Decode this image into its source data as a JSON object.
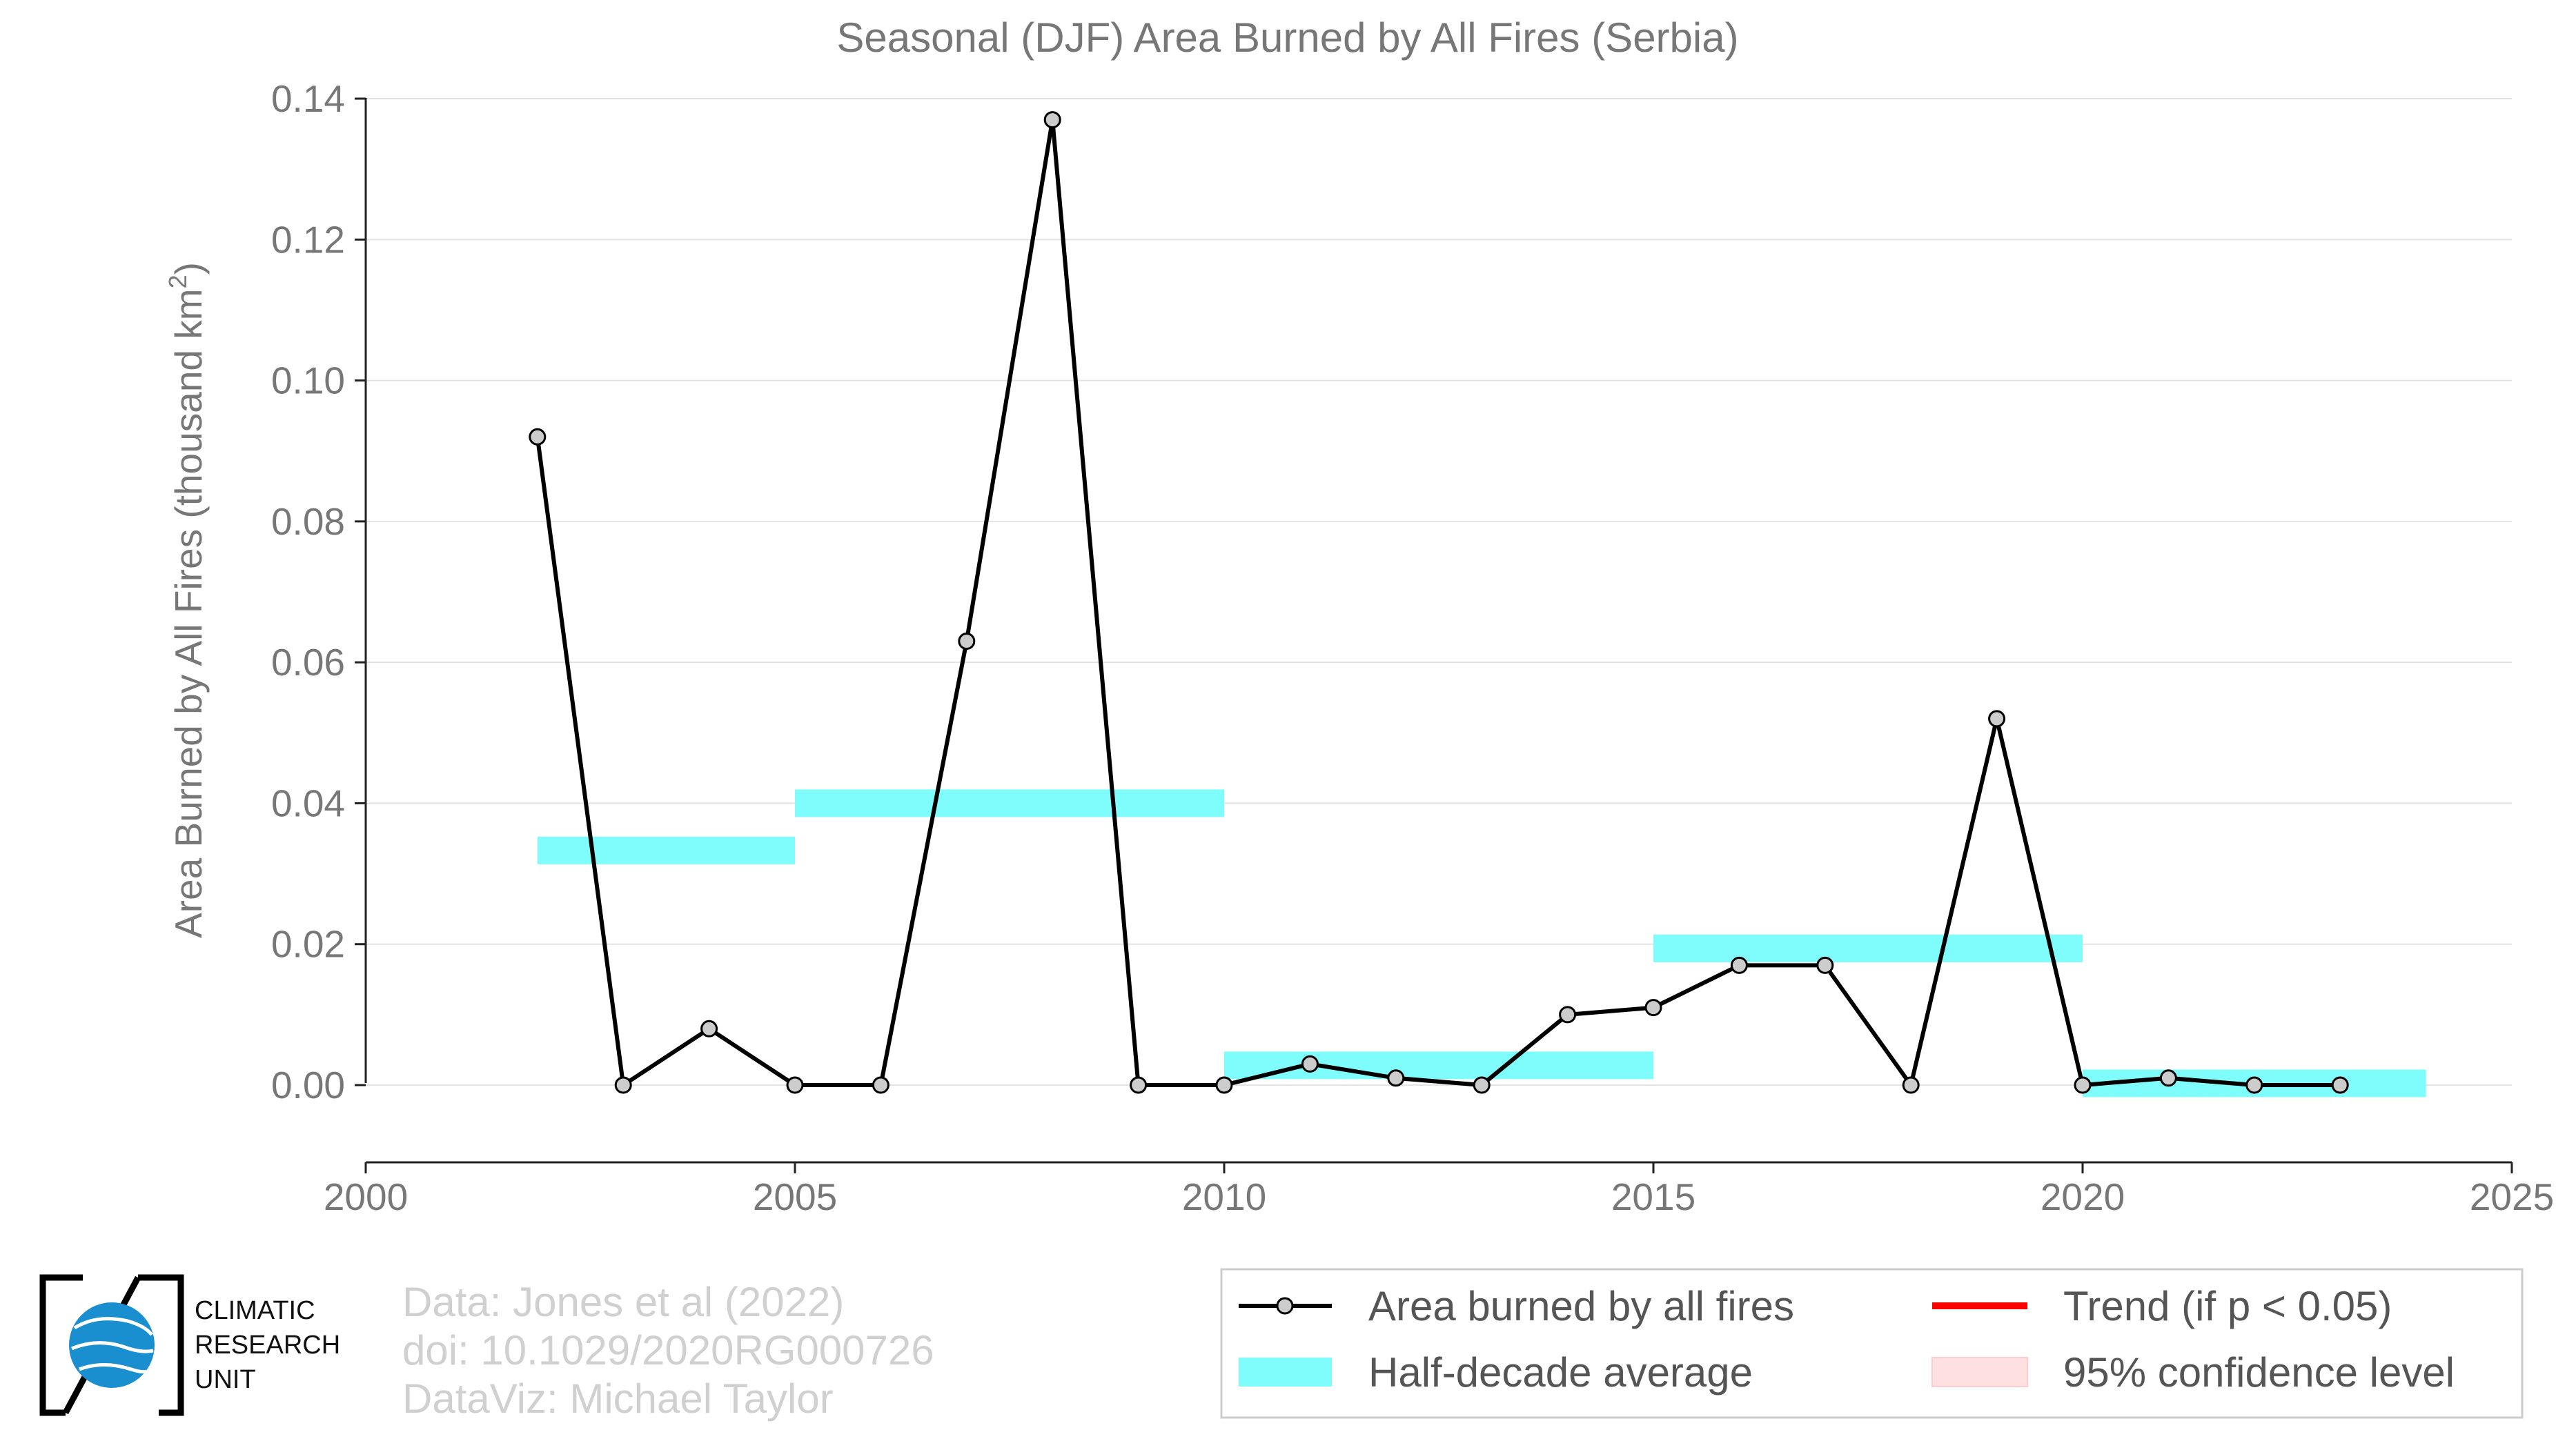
{
  "chart_data": {
    "type": "line",
    "title": "Seasonal (DJF) Area Burned by All Fires (Serbia)",
    "ylabel": "Area Burned by All Fires (thousand km",
    "ylabel_sup": "2",
    "ylabel_close": ")",
    "xlabel": "",
    "xlim": [
      2000,
      2025
    ],
    "ylim": [
      -0.011,
      0.14
    ],
    "x_ticks": [
      2000,
      2005,
      2010,
      2015,
      2020,
      2025
    ],
    "y_ticks": [
      0.0,
      0.02,
      0.04,
      0.06,
      0.08,
      0.1,
      0.12,
      0.14
    ],
    "y_tick_labels": [
      "0.00",
      "0.02",
      "0.04",
      "0.06",
      "0.08",
      "0.10",
      "0.12",
      "0.14"
    ],
    "grid": "horizontal",
    "legend_position": "bottom-right",
    "series": [
      {
        "name": "Area burned by all fires",
        "color": "#000000",
        "marker_fill": "#cccccc",
        "x": [
          2002,
          2003,
          2004,
          2005,
          2006,
          2007,
          2008,
          2009,
          2010,
          2011,
          2012,
          2013,
          2014,
          2015,
          2016,
          2017,
          2018,
          2019,
          2020,
          2021,
          2022,
          2023
        ],
        "y": [
          0.092,
          0.0,
          0.008,
          0.0,
          0.0,
          0.063,
          0.137,
          0.0,
          0.0,
          0.003,
          0.001,
          0.0,
          0.01,
          0.011,
          0.017,
          0.017,
          0.0,
          0.052,
          0.0,
          0.001,
          0.0,
          0.0
        ]
      }
    ],
    "half_decade_average": {
      "name": "Half-decade average",
      "color": "#7ffcfc",
      "segments": [
        {
          "x0": 2002,
          "x1": 2005,
          "y": 0.0333
        },
        {
          "x0": 2005,
          "x1": 2010,
          "y": 0.04
        },
        {
          "x0": 2010,
          "x1": 2015,
          "y": 0.0028
        },
        {
          "x0": 2015,
          "x1": 2020,
          "y": 0.0194
        },
        {
          "x0": 2020,
          "x1": 2024,
          "y": 0.00025
        }
      ]
    },
    "legend": [
      {
        "key": "area",
        "label": "Area burned by all fires"
      },
      {
        "key": "trend",
        "label": "Trend (if p < 0.05)",
        "color": "#ff0000"
      },
      {
        "key": "half",
        "label": "Half-decade average"
      },
      {
        "key": "ci",
        "label": "95% confidence level",
        "color": "#ffe0e0"
      }
    ]
  },
  "credits": {
    "line1": "Data: Jones et al (2022)",
    "line2": "doi: 10.1029/2020RG000726",
    "line3": "DataViz: Michael Taylor"
  },
  "logo": {
    "line1": "CLIMATIC",
    "line2": "RESEARCH",
    "line3": "UNIT",
    "globe_color": "#1a8fd0"
  }
}
